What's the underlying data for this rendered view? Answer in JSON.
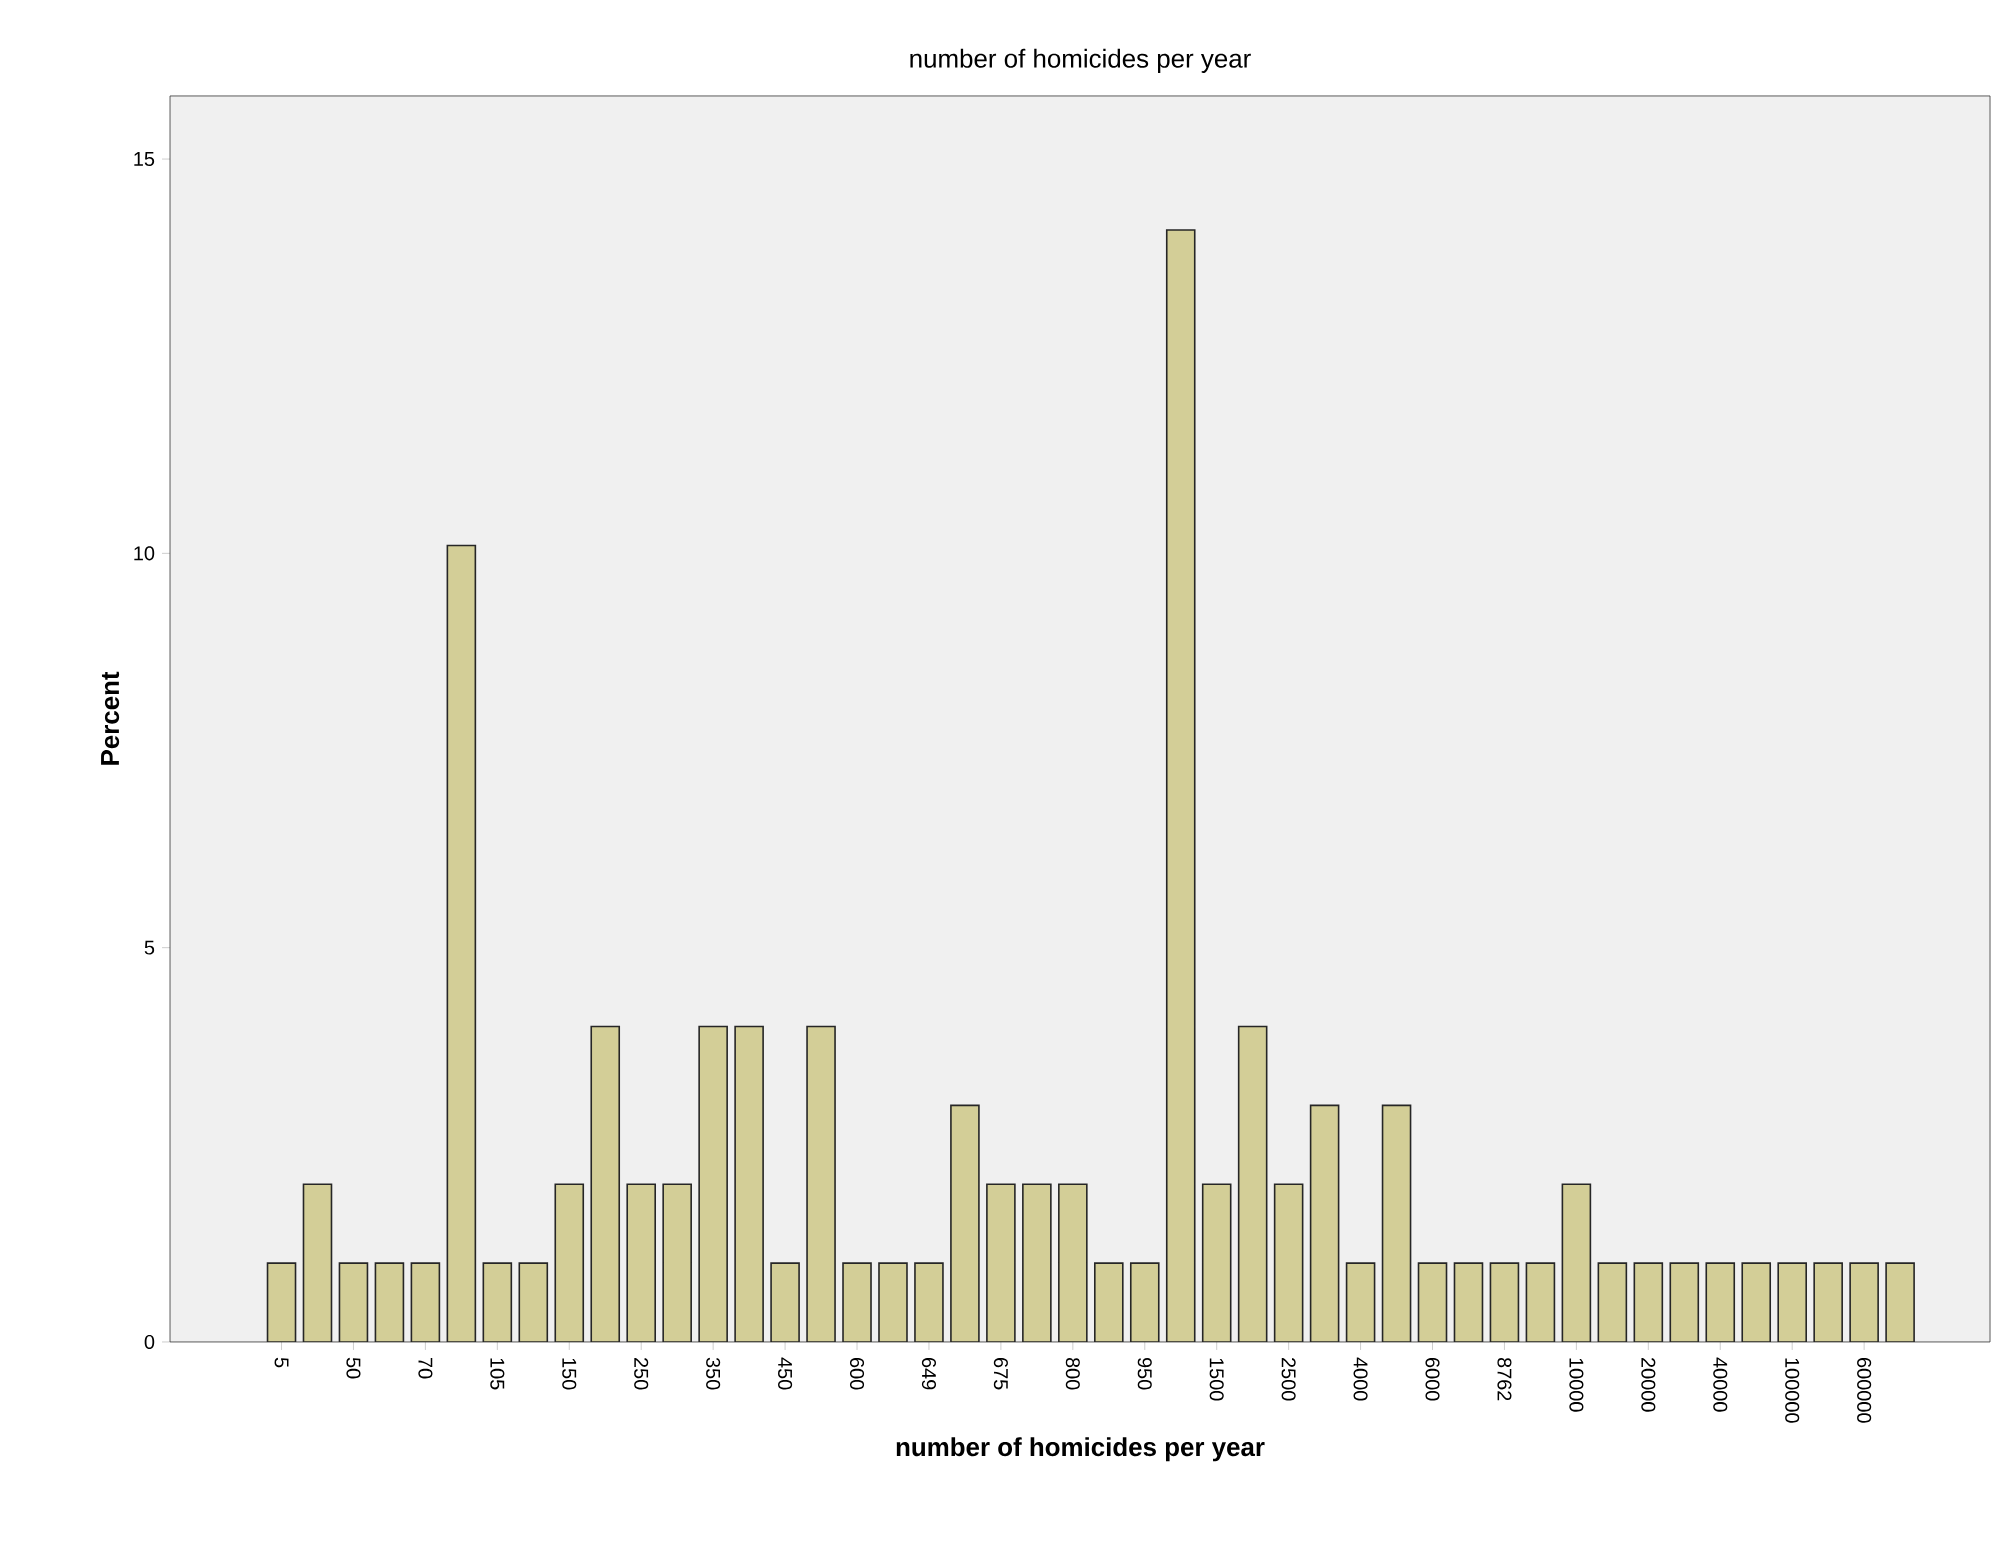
{
  "chart_data": {
    "type": "bar",
    "title": "number of homicides per year",
    "xlabel": "number of homicides per year",
    "ylabel": "Percent",
    "categories": [
      "5",
      null,
      "50",
      null,
      "70",
      null,
      "105",
      null,
      "150",
      null,
      "250",
      null,
      "350",
      null,
      "450",
      null,
      "600",
      null,
      "649",
      null,
      "675",
      null,
      "800",
      null,
      "950",
      null,
      "1500",
      null,
      "2500",
      null,
      "4000",
      null,
      "6000",
      null,
      "8762",
      null,
      "10000",
      null,
      "20000",
      null,
      "40000",
      null,
      "100000",
      null,
      "600000",
      null
    ],
    "values": [
      1,
      2,
      1,
      1,
      1,
      10.1,
      1,
      1,
      2,
      4,
      2,
      2,
      4,
      4,
      1,
      4,
      1,
      1,
      1,
      3,
      2,
      2,
      2,
      1,
      1,
      14.1,
      2,
      4,
      2,
      3,
      1,
      3,
      1,
      1,
      1,
      1,
      2,
      1,
      1,
      1,
      1,
      1,
      1,
      1,
      1,
      1
    ],
    "color": "#d3ce97",
    "ylim": [
      0,
      15.8
    ],
    "yticks": [
      0,
      5,
      10,
      15
    ]
  }
}
